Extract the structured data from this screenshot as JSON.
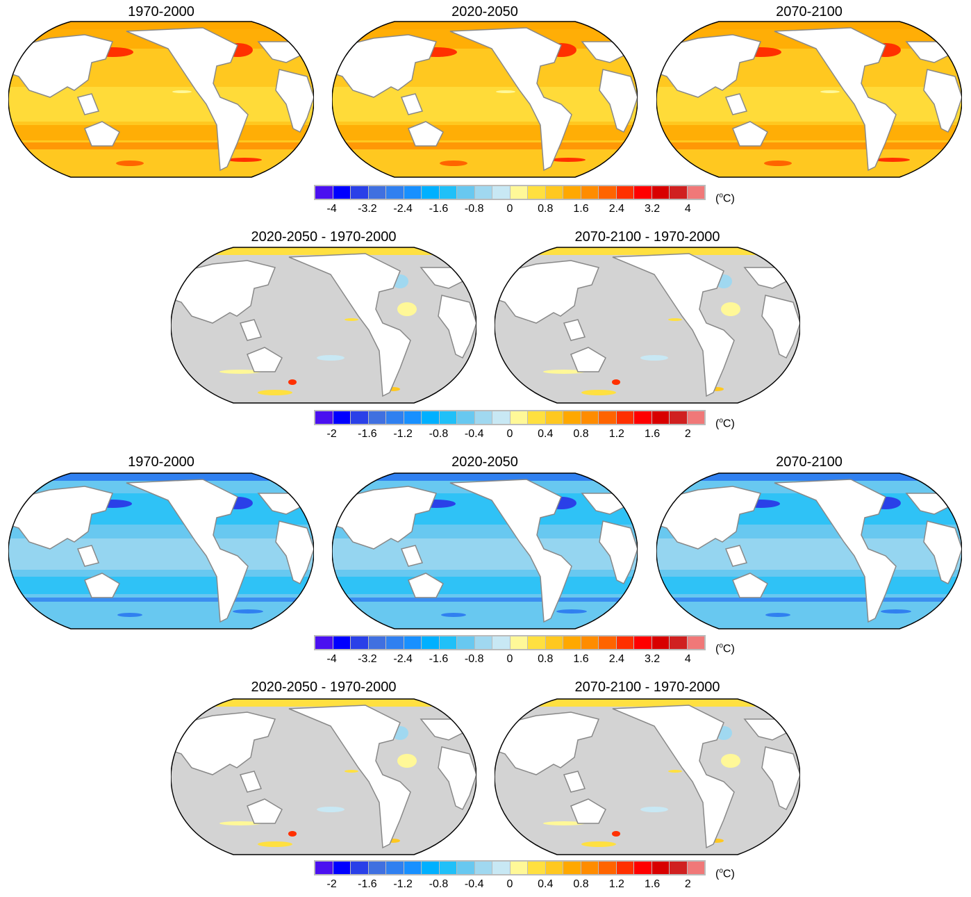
{
  "colorbar_colors": [
    "#4a10f0",
    "#0000ff",
    "#2a40e8",
    "#4070e0",
    "#3080f0",
    "#1890ff",
    "#00b0ff",
    "#20c0f8",
    "#68c8f0",
    "#a0d8f0",
    "#c8e8f4",
    "#fff898",
    "#ffe040",
    "#ffc820",
    "#ffa800",
    "#ff8c00",
    "#ff6400",
    "#ff3000",
    "#ff0000",
    "#d80000",
    "#d02020",
    "#f07878"
  ],
  "unit": "(oC)",
  "rows": [
    {
      "panels": [
        {
          "title": "1970-2000",
          "style": "warm"
        },
        {
          "title": "2020-2050",
          "style": "warm"
        },
        {
          "title": "2070-2100",
          "style": "warm"
        }
      ],
      "ticks": [
        "-4",
        "-3.2",
        "-2.4",
        "-1.6",
        "-0.8",
        "0",
        "0.8",
        "1.6",
        "2.4",
        "3.2",
        "4"
      ]
    },
    {
      "panels": [
        {
          "title": "2020-2050 - 1970-2000",
          "style": "diff"
        },
        {
          "title": "2070-2100 - 1970-2000",
          "style": "diff"
        }
      ],
      "ticks": [
        "-2",
        "-1.6",
        "-1.2",
        "-0.8",
        "-0.4",
        "0",
        "0.4",
        "0.8",
        "1.2",
        "1.6",
        "2"
      ]
    },
    {
      "panels": [
        {
          "title": "1970-2000",
          "style": "cool"
        },
        {
          "title": "2020-2050",
          "style": "cool"
        },
        {
          "title": "2070-2100",
          "style": "cool"
        }
      ],
      "ticks": [
        "-4",
        "-3.2",
        "-2.4",
        "-1.6",
        "-0.8",
        "0",
        "0.8",
        "1.6",
        "2.4",
        "3.2",
        "4"
      ]
    },
    {
      "panels": [
        {
          "title": "2020-2050 - 1970-2000",
          "style": "diff"
        },
        {
          "title": "2070-2100 - 1970-2000",
          "style": "diff"
        }
      ],
      "ticks": [
        "-2",
        "-1.6",
        "-1.2",
        "-0.8",
        "-0.4",
        "0",
        "0.4",
        "0.8",
        "1.2",
        "1.6",
        "2"
      ]
    }
  ]
}
